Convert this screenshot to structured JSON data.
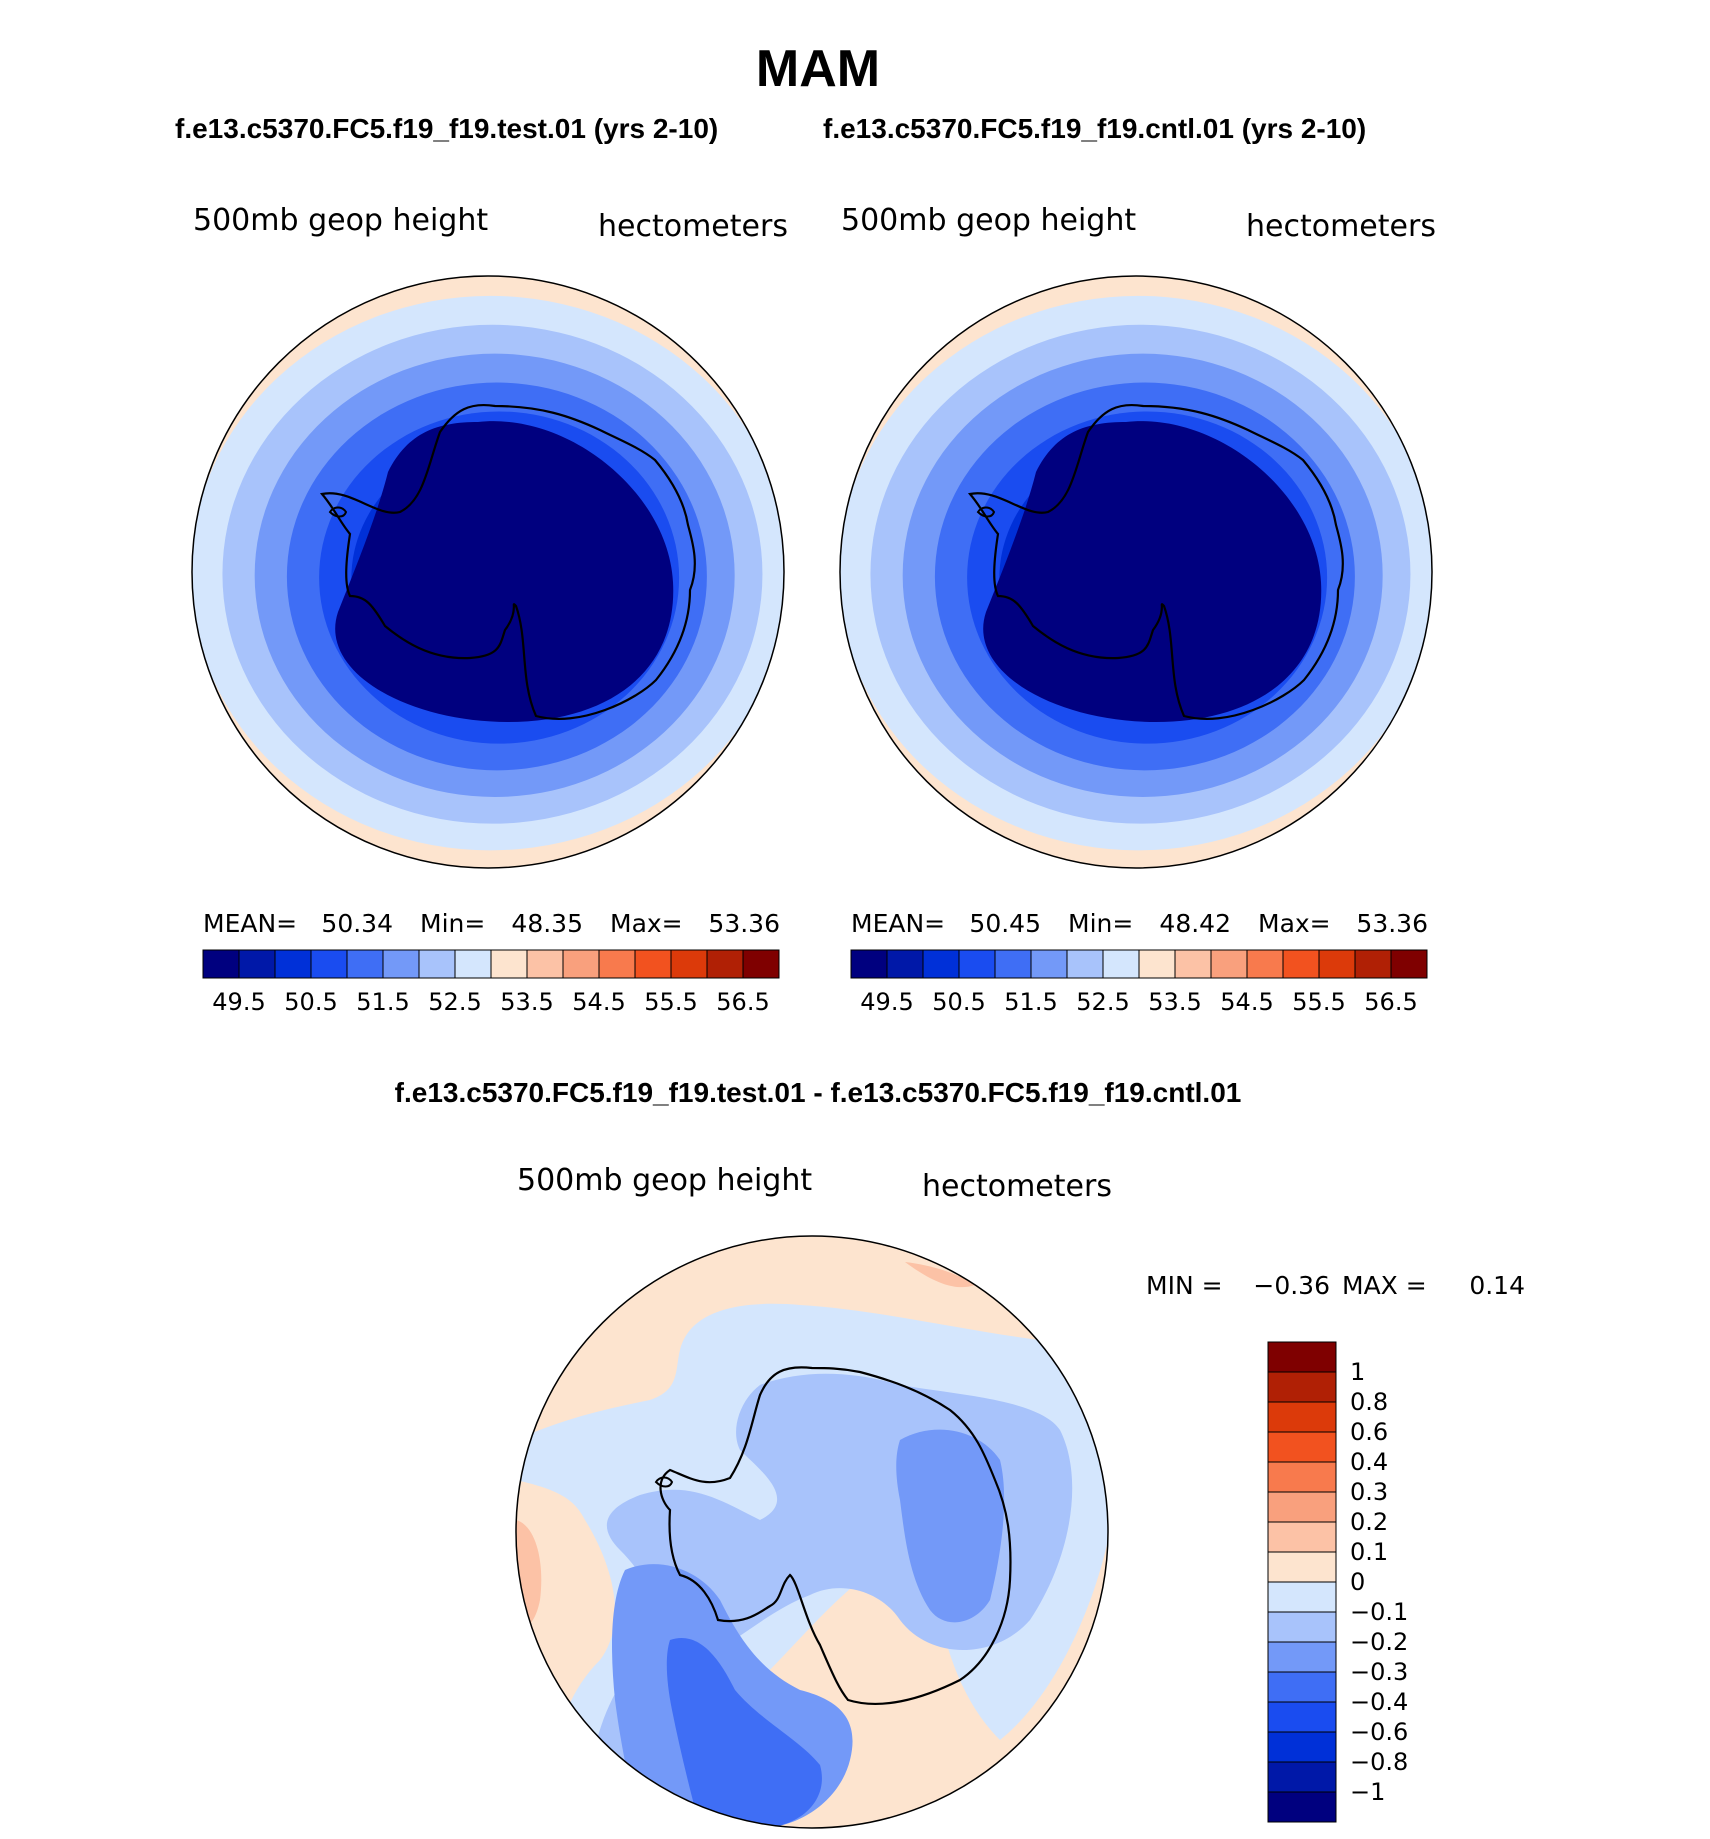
{
  "figure": {
    "title": "MAM",
    "subtitle_test": "f.e13.c5370.FC5.f19_f19.test.01 (yrs 2-10)",
    "subtitle_cntl": "f.e13.c5370.FC5.f19_f19.cntl.01 (yrs 2-10)",
    "diff_title": "f.e13.c5370.FC5.f19_f19.test.01 - f.e13.c5370.FC5.f19_f19.cntl.01"
  },
  "chart_data": [
    {
      "type": "heatmap",
      "projection": "south polar stereographic",
      "variable": "500mb geop height",
      "units": "hectometers",
      "stats": {
        "mean_label": "MEAN=",
        "mean": "50.34",
        "min_label": "Min=",
        "min": "48.35",
        "max_label": "Max=",
        "max": "53.36"
      },
      "levels": [
        "49.5",
        "50.5",
        "51.5",
        "52.5",
        "53.5",
        "54.5",
        "55.5",
        "56.5"
      ],
      "colors": [
        "#00007f",
        "#0018a8",
        "#0030d8",
        "#1a4cf0",
        "#3f6ef5",
        "#7399f8",
        "#a8c3fb",
        "#d4e6fd",
        "#fde4cf",
        "#fcc2a6",
        "#f9a07d",
        "#f87a4d",
        "#f2521f",
        "#dc3a0a",
        "#b02005",
        "#7f0000"
      ],
      "ring_band_indices": [
        0,
        1,
        2,
        3,
        4,
        5,
        6,
        7,
        8
      ]
    },
    {
      "type": "heatmap",
      "projection": "south polar stereographic",
      "variable": "500mb geop height",
      "units": "hectometers",
      "stats": {
        "mean_label": "MEAN=",
        "mean": "50.45",
        "min_label": "Min=",
        "min": "48.42",
        "max_label": "Max=",
        "max": "53.36"
      },
      "levels": [
        "49.5",
        "50.5",
        "51.5",
        "52.5",
        "53.5",
        "54.5",
        "55.5",
        "56.5"
      ],
      "colors": [
        "#00007f",
        "#0018a8",
        "#0030d8",
        "#1a4cf0",
        "#3f6ef5",
        "#7399f8",
        "#a8c3fb",
        "#d4e6fd",
        "#fde4cf",
        "#fcc2a6",
        "#f9a07d",
        "#f87a4d",
        "#f2521f",
        "#dc3a0a",
        "#b02005",
        "#7f0000"
      ],
      "ring_band_indices": [
        0,
        1,
        2,
        3,
        4,
        5,
        6,
        7,
        8
      ]
    },
    {
      "type": "heatmap",
      "projection": "south polar stereographic",
      "variable": "500mb geop height",
      "units": "hectometers",
      "stats": {
        "min_label": "MIN =",
        "min": "−0.36",
        "max_label": "MAX =",
        "max": "0.14"
      },
      "levels": [
        "1",
        "0.8",
        "0.6",
        "0.4",
        "0.3",
        "0.2",
        "0.1",
        "0",
        "−0.1",
        "−0.2",
        "−0.3",
        "−0.4",
        "−0.6",
        "−0.8",
        "−1"
      ],
      "colors": [
        "#7f0000",
        "#b02005",
        "#dc3a0a",
        "#f2521f",
        "#f87a4d",
        "#f9a07d",
        "#fcc2a6",
        "#fde4cf",
        "#d4e6fd",
        "#a8c3fb",
        "#7399f8",
        "#3f6ef5",
        "#1a4cf0",
        "#0030d8",
        "#0018a8",
        "#00007f"
      ]
    }
  ]
}
